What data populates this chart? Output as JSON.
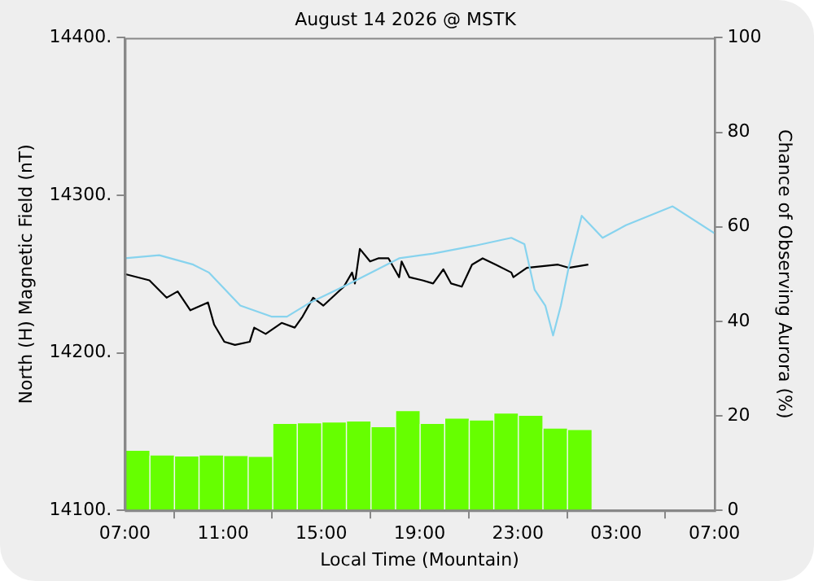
{
  "chart_data": {
    "type": "line",
    "title": "August 14 2026 @ MSTK",
    "xlabel": "Local Time (Mountain)",
    "ylabel": "North (H) Magnetic Field (nT)",
    "y2label": "Chance of Observing Aurora (%)",
    "xlim": [
      "2026-08-14T07:00",
      "2026-08-15T07:00"
    ],
    "xticks": [
      {
        "value": "2026-08-14T07:00",
        "label": "07:00"
      },
      {
        "value": "2026-08-14T11:00",
        "label": "11:00"
      },
      {
        "value": "2026-08-14T15:00",
        "label": "15:00"
      },
      {
        "value": "2026-08-14T19:00",
        "label": "19:00"
      },
      {
        "value": "2026-08-14T23:00",
        "label": "23:00"
      },
      {
        "value": "2026-08-15T03:00",
        "label": "03:00"
      },
      {
        "value": "2026-08-15T07:00",
        "label": "07:00"
      }
    ],
    "ylim": [
      14100,
      14400
    ],
    "yticks": [
      {
        "value": 14100,
        "label": "14100."
      },
      {
        "value": 14200,
        "label": "14200."
      },
      {
        "value": 14300,
        "label": "14300."
      },
      {
        "value": 14400,
        "label": "14400."
      }
    ],
    "y2lim": [
      0,
      100
    ],
    "y2ticks": [
      0,
      20,
      40,
      60,
      80,
      100
    ],
    "grid": false,
    "legend": false,
    "marker": "none",
    "series": [
      {
        "type": "bar",
        "axis": "y2",
        "color": "#66ff00",
        "x": [
          "2026-08-14T07:30",
          "2026-08-14T08:30",
          "2026-08-14T09:30",
          "2026-08-14T10:30",
          "2026-08-14T11:30",
          "2026-08-14T12:30",
          "2026-08-14T13:30",
          "2026-08-14T14:30",
          "2026-08-14T15:30",
          "2026-08-14T16:30",
          "2026-08-14T17:30",
          "2026-08-14T18:30",
          "2026-08-14T19:30",
          "2026-08-14T20:30",
          "2026-08-14T21:30",
          "2026-08-14T22:30",
          "2026-08-14T23:30",
          "2026-08-15T00:30",
          "2026-08-15T01:30"
        ],
        "values": [
          12.6,
          11.6,
          11.4,
          11.6,
          11.5,
          11.3,
          18.3,
          18.4,
          18.6,
          18.8,
          17.6,
          21.0,
          18.3,
          19.4,
          19.0,
          20.5,
          20.0,
          17.3,
          17.0
        ]
      },
      {
        "color": "#87d3ee",
        "x": [
          "2026-08-14T07:00",
          "2026-08-14T08:24",
          "2026-08-14T09:47",
          "2026-08-14T10:25",
          "2026-08-14T11:42",
          "2026-08-14T12:58",
          "2026-08-14T13:36",
          "2026-08-14T14:33",
          "2026-08-14T16:09",
          "2026-08-14T18:10",
          "2026-08-14T19:33",
          "2026-08-14T21:15",
          "2026-08-14T22:44",
          "2026-08-14T23:16",
          "2026-08-14T23:41",
          "2026-08-15T00:07",
          "2026-08-15T00:26",
          "2026-08-15T00:45",
          "2026-08-15T01:04",
          "2026-08-15T01:36",
          "2026-08-15T02:27",
          "2026-08-15T03:24",
          "2026-08-15T05:18",
          "2026-08-15T07:00"
        ],
        "values": [
          14260,
          14262,
          14256,
          14251,
          14230,
          14223,
          14223,
          14232,
          14244,
          14260,
          14263,
          14268,
          14273,
          14269,
          14240,
          14230,
          14211,
          14230,
          14254,
          14287,
          14273,
          14281,
          14293,
          14276
        ]
      },
      {
        "color": "#000000",
        "x": [
          "2026-08-14T07:00",
          "2026-08-14T08:00",
          "2026-08-14T08:42",
          "2026-08-14T09:09",
          "2026-08-14T09:40",
          "2026-08-14T10:23",
          "2026-08-14T10:38",
          "2026-08-14T11:03",
          "2026-08-14T11:29",
          "2026-08-14T12:05",
          "2026-08-14T12:16",
          "2026-08-14T12:44",
          "2026-08-14T13:23",
          "2026-08-14T13:55",
          "2026-08-14T14:14",
          "2026-08-14T14:40",
          "2026-08-14T15:05",
          "2026-08-14T15:55",
          "2026-08-14T16:15",
          "2026-08-14T16:22",
          "2026-08-14T16:34",
          "2026-08-14T16:59",
          "2026-08-14T17:19",
          "2026-08-14T17:44",
          "2026-08-14T18:10",
          "2026-08-14T18:16",
          "2026-08-14T18:35",
          "2026-08-14T19:07",
          "2026-08-14T19:33",
          "2026-08-14T19:58",
          "2026-08-14T20:17",
          "2026-08-14T20:43",
          "2026-08-14T21:08",
          "2026-08-14T21:34",
          "2026-08-14T22:06",
          "2026-08-14T22:44",
          "2026-08-14T22:49",
          "2026-08-14T23:22",
          "2026-08-15T00:38",
          "2026-08-15T01:04",
          "2026-08-15T01:52"
        ],
        "values": [
          14250,
          14246,
          14235,
          14239,
          14227,
          14232,
          14218,
          14207,
          14205,
          14207,
          14216,
          14212,
          14219,
          14216,
          14223,
          14235,
          14230,
          14242,
          14251,
          14244,
          14266,
          14258,
          14260,
          14260,
          14248,
          14258,
          14248,
          14246,
          14244,
          14253,
          14244,
          14242,
          14256,
          14260,
          14256,
          14251,
          14248,
          14254,
          14256,
          14254,
          14256
        ]
      }
    ]
  }
}
